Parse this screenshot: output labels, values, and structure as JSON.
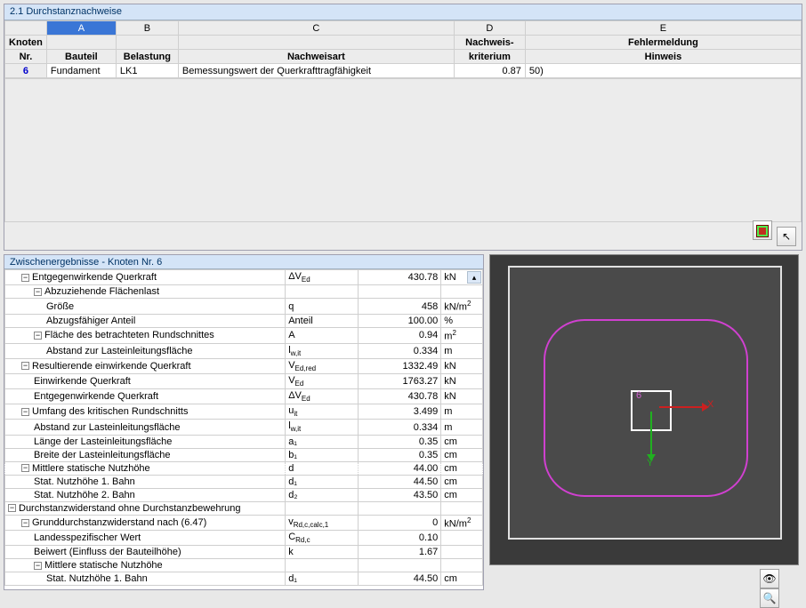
{
  "top": {
    "title": "2.1 Durchstanznachweise",
    "letters": [
      "A",
      "B",
      "C",
      "D",
      "E"
    ],
    "headers_row1": {
      "knoten": "Knoten",
      "nachweis": "Nachweis-",
      "fehler": "Fehlermeldung"
    },
    "headers_row2": {
      "nr": "Nr.",
      "bauteil": "Bauteil",
      "belastung": "Belastung",
      "nachweisart": "Nachweisart",
      "kriterium": "kriterium",
      "hinweis": "Hinweis"
    },
    "row": {
      "nr": "6",
      "bauteil": "Fundament",
      "belastung": "LK1",
      "nachweisart": "Bemessungswert der Querkrafttragfähigkeit",
      "kriterium": "0.87",
      "hinweis": "50)"
    }
  },
  "detail": {
    "title": "Zwischenergebnisse - Knoten Nr. 6",
    "rows": [
      {
        "lvl": 1,
        "exp": "-",
        "name": "Entgegenwirkende Querkraft",
        "sym": "ΔV_Ed",
        "val": "430.78",
        "unit": "kN"
      },
      {
        "lvl": 2,
        "exp": "-",
        "name": "Abzuziehende Flächenlast",
        "sym": "",
        "val": "",
        "unit": ""
      },
      {
        "lvl": 3,
        "exp": "",
        "name": "Größe",
        "sym": "q",
        "val": "458",
        "unit": "kN/m²"
      },
      {
        "lvl": 3,
        "exp": "",
        "name": "Abzugsfähiger Anteil",
        "sym": "Anteil",
        "val": "100.00",
        "unit": "%"
      },
      {
        "lvl": 2,
        "exp": "-",
        "name": "Fläche des betrachteten Rundschnittes",
        "sym": "A",
        "val": "0.94",
        "unit": "m²"
      },
      {
        "lvl": 3,
        "exp": "",
        "name": "Abstand zur Lasteinleitungsfläche",
        "sym": "l_w,it",
        "val": "0.334",
        "unit": "m"
      },
      {
        "lvl": 1,
        "exp": "-",
        "name": "Resultierende einwirkende Querkraft",
        "sym": "V_Ed,red",
        "val": "1332.49",
        "unit": "kN"
      },
      {
        "lvl": 2,
        "exp": "",
        "name": "Einwirkende Querkraft",
        "sym": "V_Ed",
        "val": "1763.27",
        "unit": "kN"
      },
      {
        "lvl": 2,
        "exp": "",
        "name": "Entgegenwirkende Querkraft",
        "sym": "ΔV_Ed",
        "val": "430.78",
        "unit": "kN"
      },
      {
        "lvl": 1,
        "exp": "-",
        "name": "Umfang des kritischen Rundschnitts",
        "sym": "u_it",
        "val": "3.499",
        "unit": "m"
      },
      {
        "lvl": 2,
        "exp": "",
        "name": "Abstand zur Lasteinleitungsfläche",
        "sym": "l_w,it",
        "val": "0.334",
        "unit": "m"
      },
      {
        "lvl": 2,
        "exp": "",
        "name": "Länge der Lasteinleitungsfläche",
        "sym": "a₁",
        "val": "0.35",
        "unit": "cm"
      },
      {
        "lvl": 2,
        "exp": "",
        "name": "Breite der Lasteinleitungsfläche",
        "sym": "b₁",
        "val": "0.35",
        "unit": "cm"
      },
      {
        "lvl": 1,
        "exp": "-",
        "name": "Mittlere statische Nutzhöhe",
        "sym": "d",
        "val": "44.00",
        "unit": "cm",
        "dot": true
      },
      {
        "lvl": 2,
        "exp": "",
        "name": "Stat. Nutzhöhe 1. Bahn",
        "sym": "d₁",
        "val": "44.50",
        "unit": "cm"
      },
      {
        "lvl": 2,
        "exp": "",
        "name": "Stat. Nutzhöhe 2. Bahn",
        "sym": "d₂",
        "val": "43.50",
        "unit": "cm"
      },
      {
        "lvl": 0,
        "exp": "-",
        "name": "Durchstanzwiderstand ohne Durchstanzbewehrung",
        "sym": "",
        "val": "",
        "unit": ""
      },
      {
        "lvl": 1,
        "exp": "-",
        "name": "Grunddurchstanzwiderstand nach (6.47)",
        "sym": "v_Rd,c,calc,1",
        "val": "0",
        "unit": "kN/m²"
      },
      {
        "lvl": 2,
        "exp": "",
        "name": "Landesspezifischer Wert",
        "sym": "C_Rd,c",
        "val": "0.10",
        "unit": ""
      },
      {
        "lvl": 2,
        "exp": "",
        "name": "Beiwert (Einfluss der Bauteilhöhe)",
        "sym": "k",
        "val": "1.67",
        "unit": ""
      },
      {
        "lvl": 2,
        "exp": "-",
        "name": "Mittlere statische Nutzhöhe",
        "sym": "",
        "val": "",
        "unit": ""
      },
      {
        "lvl": 3,
        "exp": "",
        "name": "Stat. Nutzhöhe 1. Bahn",
        "sym": "d₁",
        "val": "44.50",
        "unit": "cm"
      }
    ]
  },
  "viewport": {
    "node_label": "6",
    "x_label": "X",
    "y_label": "Y",
    "shape_color": "#d040d0",
    "bg_outer": "#3a3a3a",
    "bg_inner": "#4a4a4a"
  },
  "icons": {
    "eye": "👁",
    "search": "🔍",
    "pointer": "↖"
  }
}
